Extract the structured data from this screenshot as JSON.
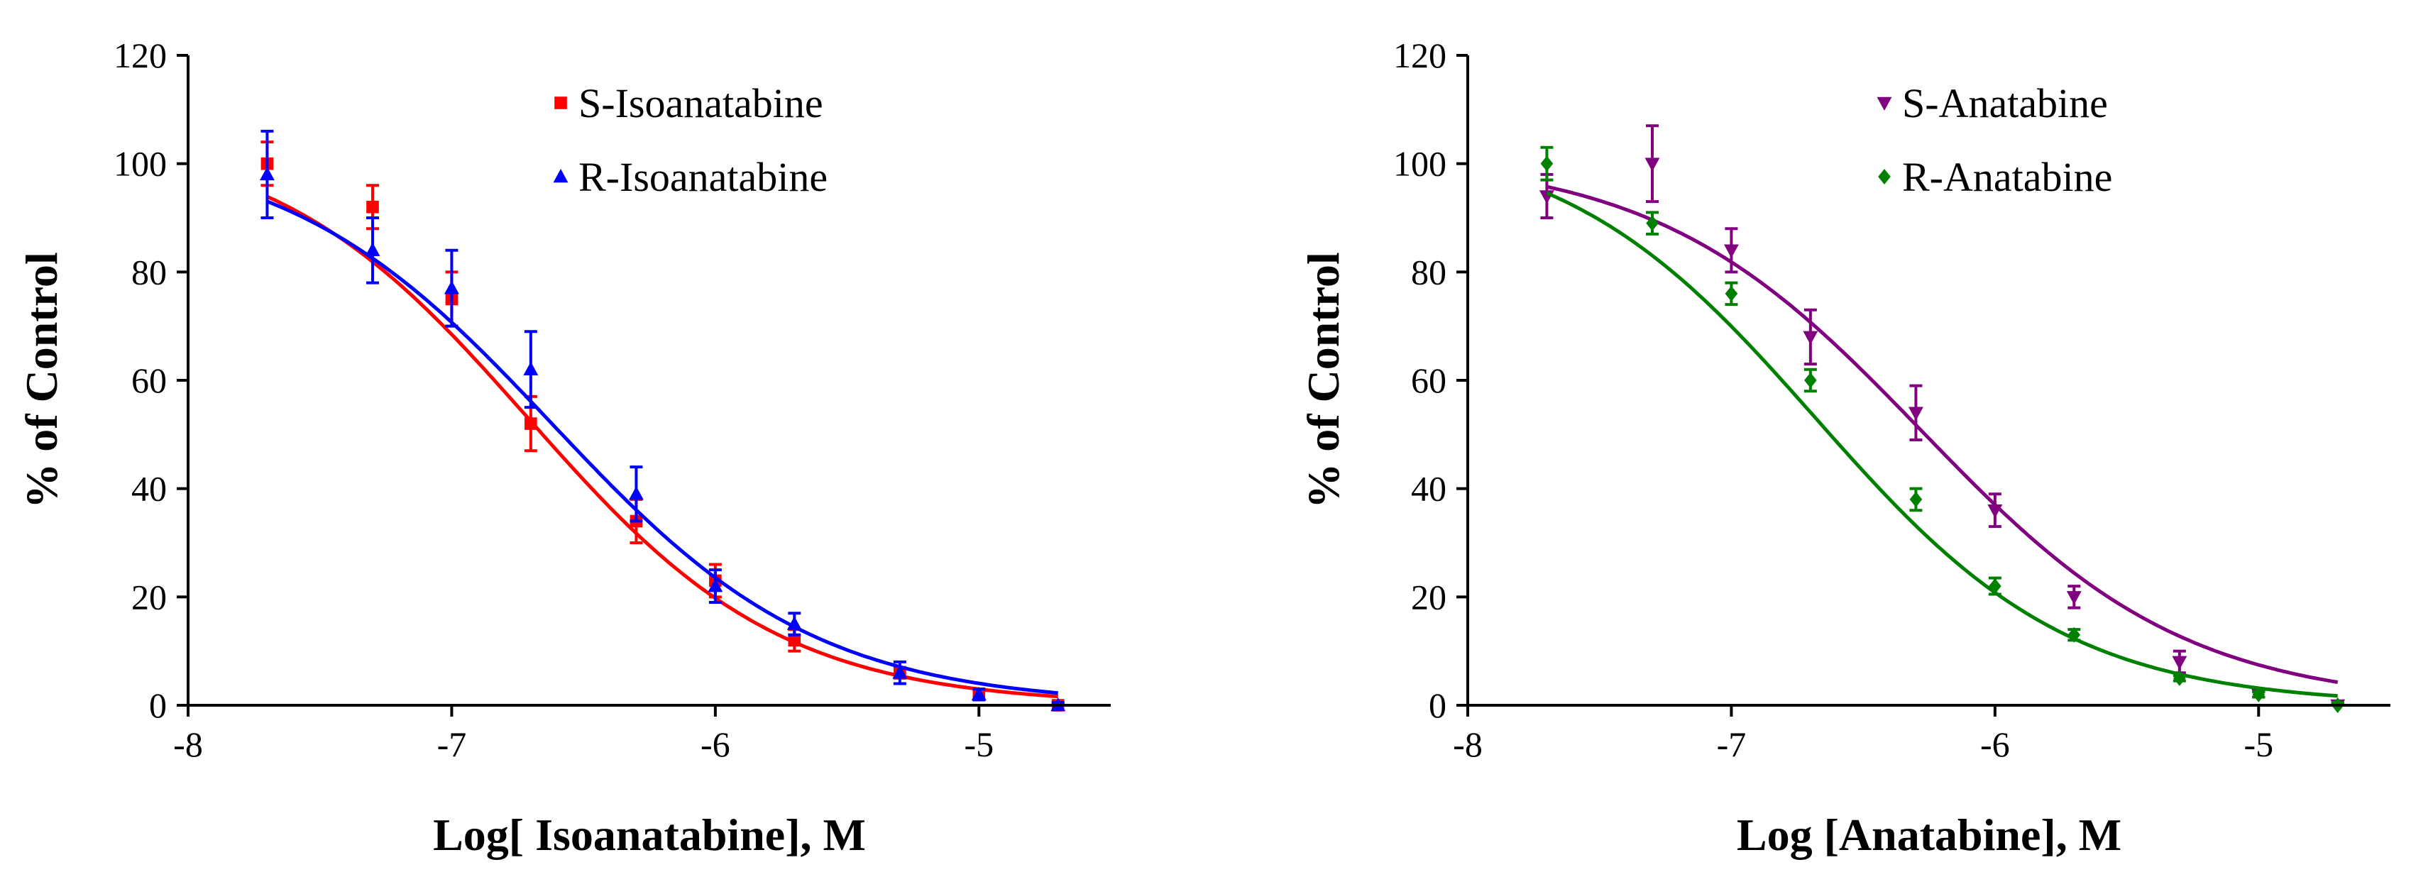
{
  "figure": {
    "panel_count": 2
  },
  "chart_data": [
    {
      "type": "scatter",
      "title": "",
      "xlabel": "Log[ Isoanatabine], M",
      "ylabel": "% of Control",
      "xlim": [
        -8,
        -4.5
      ],
      "ylim": [
        0,
        120
      ],
      "x_ticks": [
        -8,
        -7,
        -6,
        -5
      ],
      "x_tick_labels": [
        "-8",
        "-7",
        "-6",
        "-5"
      ],
      "y_ticks": [
        0,
        20,
        40,
        60,
        80,
        100,
        120
      ],
      "y_tick_labels": [
        "0",
        "20",
        "40",
        "60",
        "80",
        "100",
        "120"
      ],
      "grid": false,
      "legend_position": "top-right",
      "series": [
        {
          "name": "S-Isoanatabine",
          "color": "#ff0000",
          "marker": "square",
          "x": [
            -7.7,
            -7.3,
            -7.0,
            -6.7,
            -6.3,
            -6.0,
            -5.7,
            -5.3,
            -5.0,
            -4.7
          ],
          "y": [
            100,
            92,
            75,
            52,
            34,
            23,
            12,
            6,
            2,
            0
          ],
          "error": [
            4,
            4,
            5,
            5,
            4,
            3,
            2,
            1,
            1,
            0.5
          ],
          "fit": {
            "top": 106,
            "bottom": 0,
            "log_ic50": -6.71,
            "hill": 0.9
          }
        },
        {
          "name": "R-Isoanatabine",
          "color": "#0000ff",
          "marker": "triangle-up",
          "x": [
            -7.7,
            -7.3,
            -7.0,
            -6.7,
            -6.3,
            -6.0,
            -5.7,
            -5.3,
            -5.0,
            -4.7
          ],
          "y": [
            98,
            84,
            77,
            62,
            39,
            22,
            15,
            6,
            2,
            0
          ],
          "error": [
            8,
            6,
            7,
            7,
            5,
            3,
            2,
            2,
            1,
            0.5
          ],
          "fit": {
            "top": 104,
            "bottom": 0,
            "log_ic50": -6.62,
            "hill": 0.86
          }
        }
      ]
    },
    {
      "type": "scatter",
      "title": "",
      "xlabel": "Log [Anatabine], M",
      "ylabel": "% of Control",
      "xlim": [
        -8,
        -4.5
      ],
      "ylim": [
        0,
        120
      ],
      "x_ticks": [
        -8,
        -7,
        -6,
        -5
      ],
      "x_tick_labels": [
        "-8",
        "-7",
        "-6",
        "-5"
      ],
      "y_ticks": [
        0,
        20,
        40,
        60,
        80,
        100,
        120
      ],
      "y_tick_labels": [
        "0",
        "20",
        "40",
        "60",
        "80",
        "100",
        "120"
      ],
      "grid": false,
      "legend_position": "top-right",
      "series": [
        {
          "name": "S-Anatabine",
          "color": "#800080",
          "marker": "triangle-down",
          "x": [
            -7.7,
            -7.3,
            -7.0,
            -6.7,
            -6.3,
            -6.0,
            -5.7,
            -5.3,
            -5.0,
            -4.7
          ],
          "y": [
            94,
            100,
            84,
            68,
            54,
            36,
            20,
            8,
            2,
            0
          ],
          "error": [
            4,
            7,
            4,
            5,
            5,
            3,
            2,
            2,
            0.5,
            0.5
          ],
          "fit": {
            "top": 101.5,
            "bottom": 0,
            "log_ic50": -6.28,
            "hill": 0.86
          }
        },
        {
          "name": "R-Anatabine",
          "color": "#008000",
          "marker": "diamond",
          "x": [
            -7.7,
            -7.3,
            -7.0,
            -6.7,
            -6.3,
            -6.0,
            -5.7,
            -5.3,
            -5.0,
            -4.7
          ],
          "y": [
            100,
            89,
            76,
            60,
            38,
            22,
            13,
            5,
            2,
            0
          ],
          "error": [
            3,
            2,
            2,
            2,
            2,
            1.5,
            1,
            0.5,
            0.5,
            0.5
          ],
          "fit": {
            "top": 106,
            "bottom": 0,
            "log_ic50": -6.68,
            "hill": 0.9
          }
        }
      ]
    }
  ]
}
